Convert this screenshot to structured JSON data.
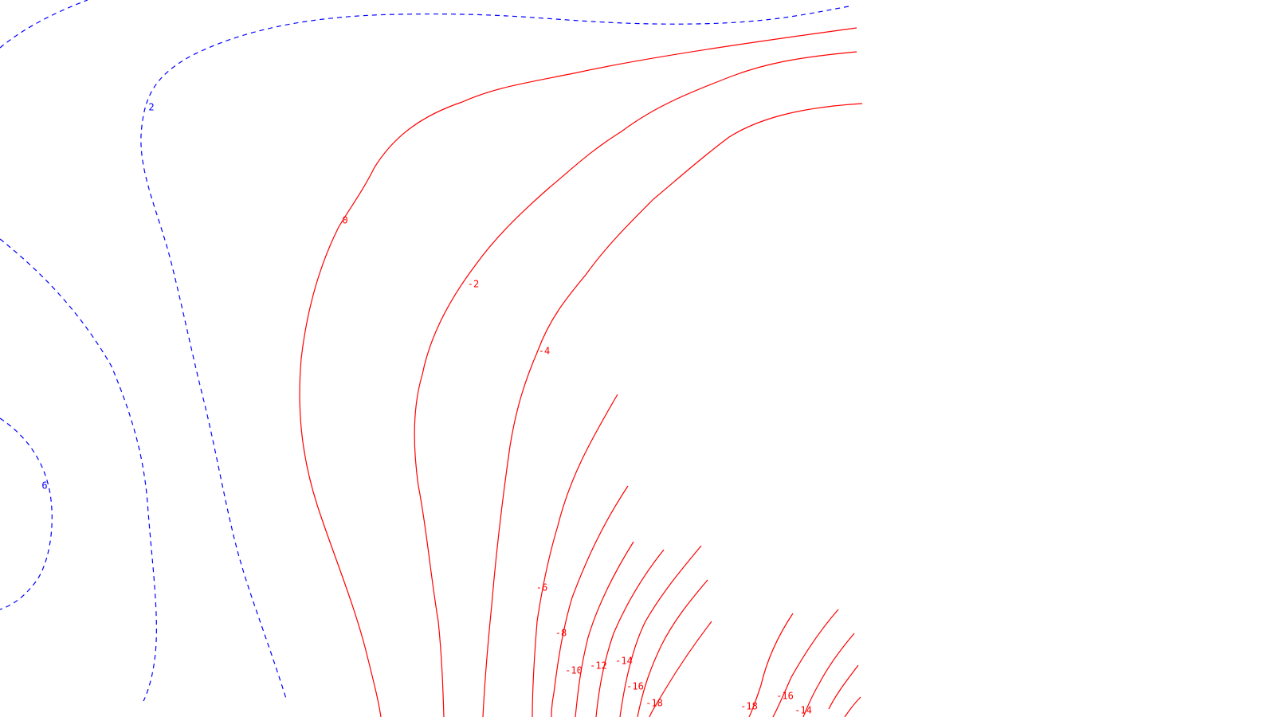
{
  "figure": {
    "colors": {
      "positive": "#0000ff",
      "negative": "#ff0000",
      "background": "#ffffff"
    },
    "line_styles": {
      "positive": "dashed",
      "negative": "solid"
    }
  },
  "chart_data": {
    "type": "contour",
    "title": "",
    "xlabel": "",
    "ylabel": "",
    "grid": false,
    "legend": false,
    "contour_levels_labeled": [
      {
        "label": "2",
        "value": 2,
        "sign": "positive"
      },
      {
        "label": "6",
        "value": 6,
        "sign": "positive"
      },
      {
        "label": "0",
        "value": 0,
        "sign": "negative"
      },
      {
        "label": "-2",
        "value": -2,
        "sign": "negative"
      },
      {
        "label": "-4",
        "value": -4,
        "sign": "negative"
      },
      {
        "label": "-6",
        "value": -6,
        "sign": "negative"
      },
      {
        "label": "-8",
        "value": -8,
        "sign": "negative"
      },
      {
        "label": "-10",
        "value": -10,
        "sign": "negative"
      },
      {
        "label": "-12",
        "value": -12,
        "sign": "negative"
      },
      {
        "label": "-14",
        "value": -14,
        "sign": "negative"
      },
      {
        "label": "-16",
        "value": -16,
        "sign": "negative"
      },
      {
        "label": "-18",
        "value": -18,
        "sign": "negative"
      },
      {
        "label": "-18",
        "value": -18,
        "sign": "negative"
      },
      {
        "label": "-16",
        "value": -16,
        "sign": "negative"
      },
      {
        "label": "-14",
        "value": -14,
        "sign": "negative"
      }
    ]
  }
}
